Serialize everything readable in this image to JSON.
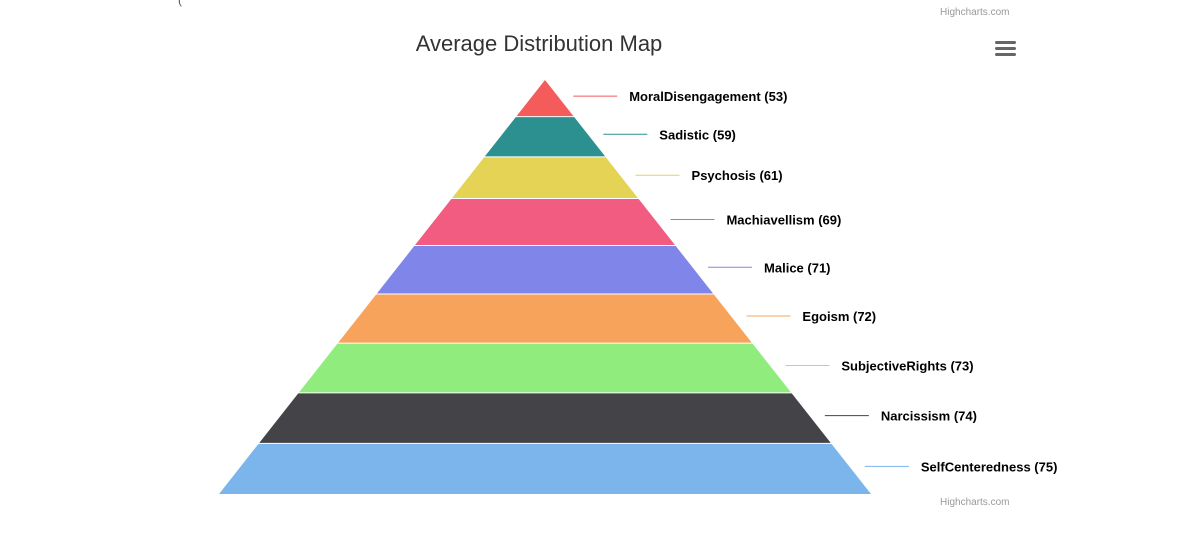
{
  "credits": {
    "top": "Highcharts.com",
    "bottom": "Highcharts.com"
  },
  "menu": {
    "icon": "hamburger-menu-icon"
  },
  "chart_data": {
    "type": "pyramid",
    "title": "Average Distribution Map",
    "legend": "none",
    "grid": false,
    "data_label_format": "{name} ({value})",
    "points": [
      {
        "name": "MoralDisengagement",
        "value": 53,
        "color": "#f45b5b"
      },
      {
        "name": "Sadistic",
        "value": 59,
        "color": "#2b908f"
      },
      {
        "name": "Psychosis",
        "value": 61,
        "color": "#e4d354"
      },
      {
        "name": "Machiavellism",
        "value": 69,
        "color": "#f15c80"
      },
      {
        "name": "Malice",
        "value": 71,
        "color": "#8085e9"
      },
      {
        "name": "Egoism",
        "value": 72,
        "color": "#f7a35c"
      },
      {
        "name": "SubjectiveRights",
        "value": 73,
        "color": "#90ed7d"
      },
      {
        "name": "Narcissism",
        "value": 74,
        "color": "#434348"
      },
      {
        "name": "SelfCenteredness",
        "value": 75,
        "color": "#7cb5ec"
      }
    ]
  }
}
